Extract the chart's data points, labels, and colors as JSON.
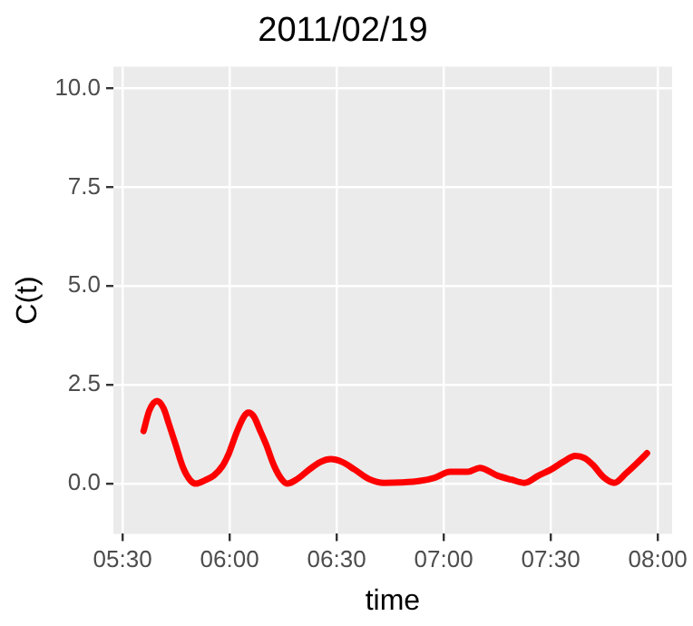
{
  "chart_data": {
    "type": "line",
    "title": "2011/02/19",
    "xlabel": "time",
    "ylabel": "C(t)",
    "x": [
      5.598,
      5.625,
      5.662,
      5.692,
      5.717,
      5.747,
      5.783,
      5.817,
      5.843,
      5.883,
      5.927,
      5.967,
      5.997,
      6.033,
      6.067,
      6.088,
      6.113,
      6.142,
      6.17,
      6.208,
      6.242,
      6.27,
      6.317,
      6.373,
      6.425,
      6.472,
      6.525,
      6.583,
      6.65,
      6.722,
      6.8,
      6.89,
      6.958,
      7.03,
      7.113,
      7.168,
      7.253,
      7.317,
      7.378,
      7.442,
      7.503,
      7.558,
      7.615,
      7.658,
      7.698,
      7.75,
      7.797,
      7.85,
      7.9,
      7.95
    ],
    "series": [
      {
        "color": "#ff0000",
        "values": [
          1.33,
          1.85,
          2.09,
          1.9,
          1.5,
          1.0,
          0.4,
          0.08,
          0.0,
          0.08,
          0.21,
          0.45,
          0.77,
          1.3,
          1.7,
          1.8,
          1.7,
          1.35,
          1.0,
          0.45,
          0.12,
          0.0,
          0.12,
          0.36,
          0.55,
          0.62,
          0.55,
          0.36,
          0.12,
          0.02,
          0.03,
          0.07,
          0.15,
          0.3,
          0.3,
          0.4,
          0.2,
          0.1,
          0.02,
          0.2,
          0.36,
          0.55,
          0.7,
          0.65,
          0.47,
          0.15,
          0.02,
          0.25,
          0.5,
          0.77
        ]
      }
    ],
    "xlim": [
      5.457,
      8.067
    ],
    "xticks": [
      {
        "value": 5.5,
        "label": "05:30"
      },
      {
        "value": 6,
        "label": "06:00"
      },
      {
        "value": 6.5,
        "label": "06:30"
      },
      {
        "value": 7,
        "label": "07:00"
      },
      {
        "value": 7.5,
        "label": "07:30"
      },
      {
        "value": 8,
        "label": "08:00"
      }
    ],
    "ylim": [
      -1.27,
      10.55
    ],
    "yticks": [
      {
        "value": 0,
        "label": "0.0"
      },
      {
        "value": 2.5,
        "label": "2.5"
      },
      {
        "value": 5,
        "label": "5.0"
      },
      {
        "value": 7.5,
        "label": "7.5"
      },
      {
        "value": 10,
        "label": "10.0"
      }
    ],
    "grid": true,
    "legend": false,
    "marker": "none",
    "line_style": "solid"
  }
}
